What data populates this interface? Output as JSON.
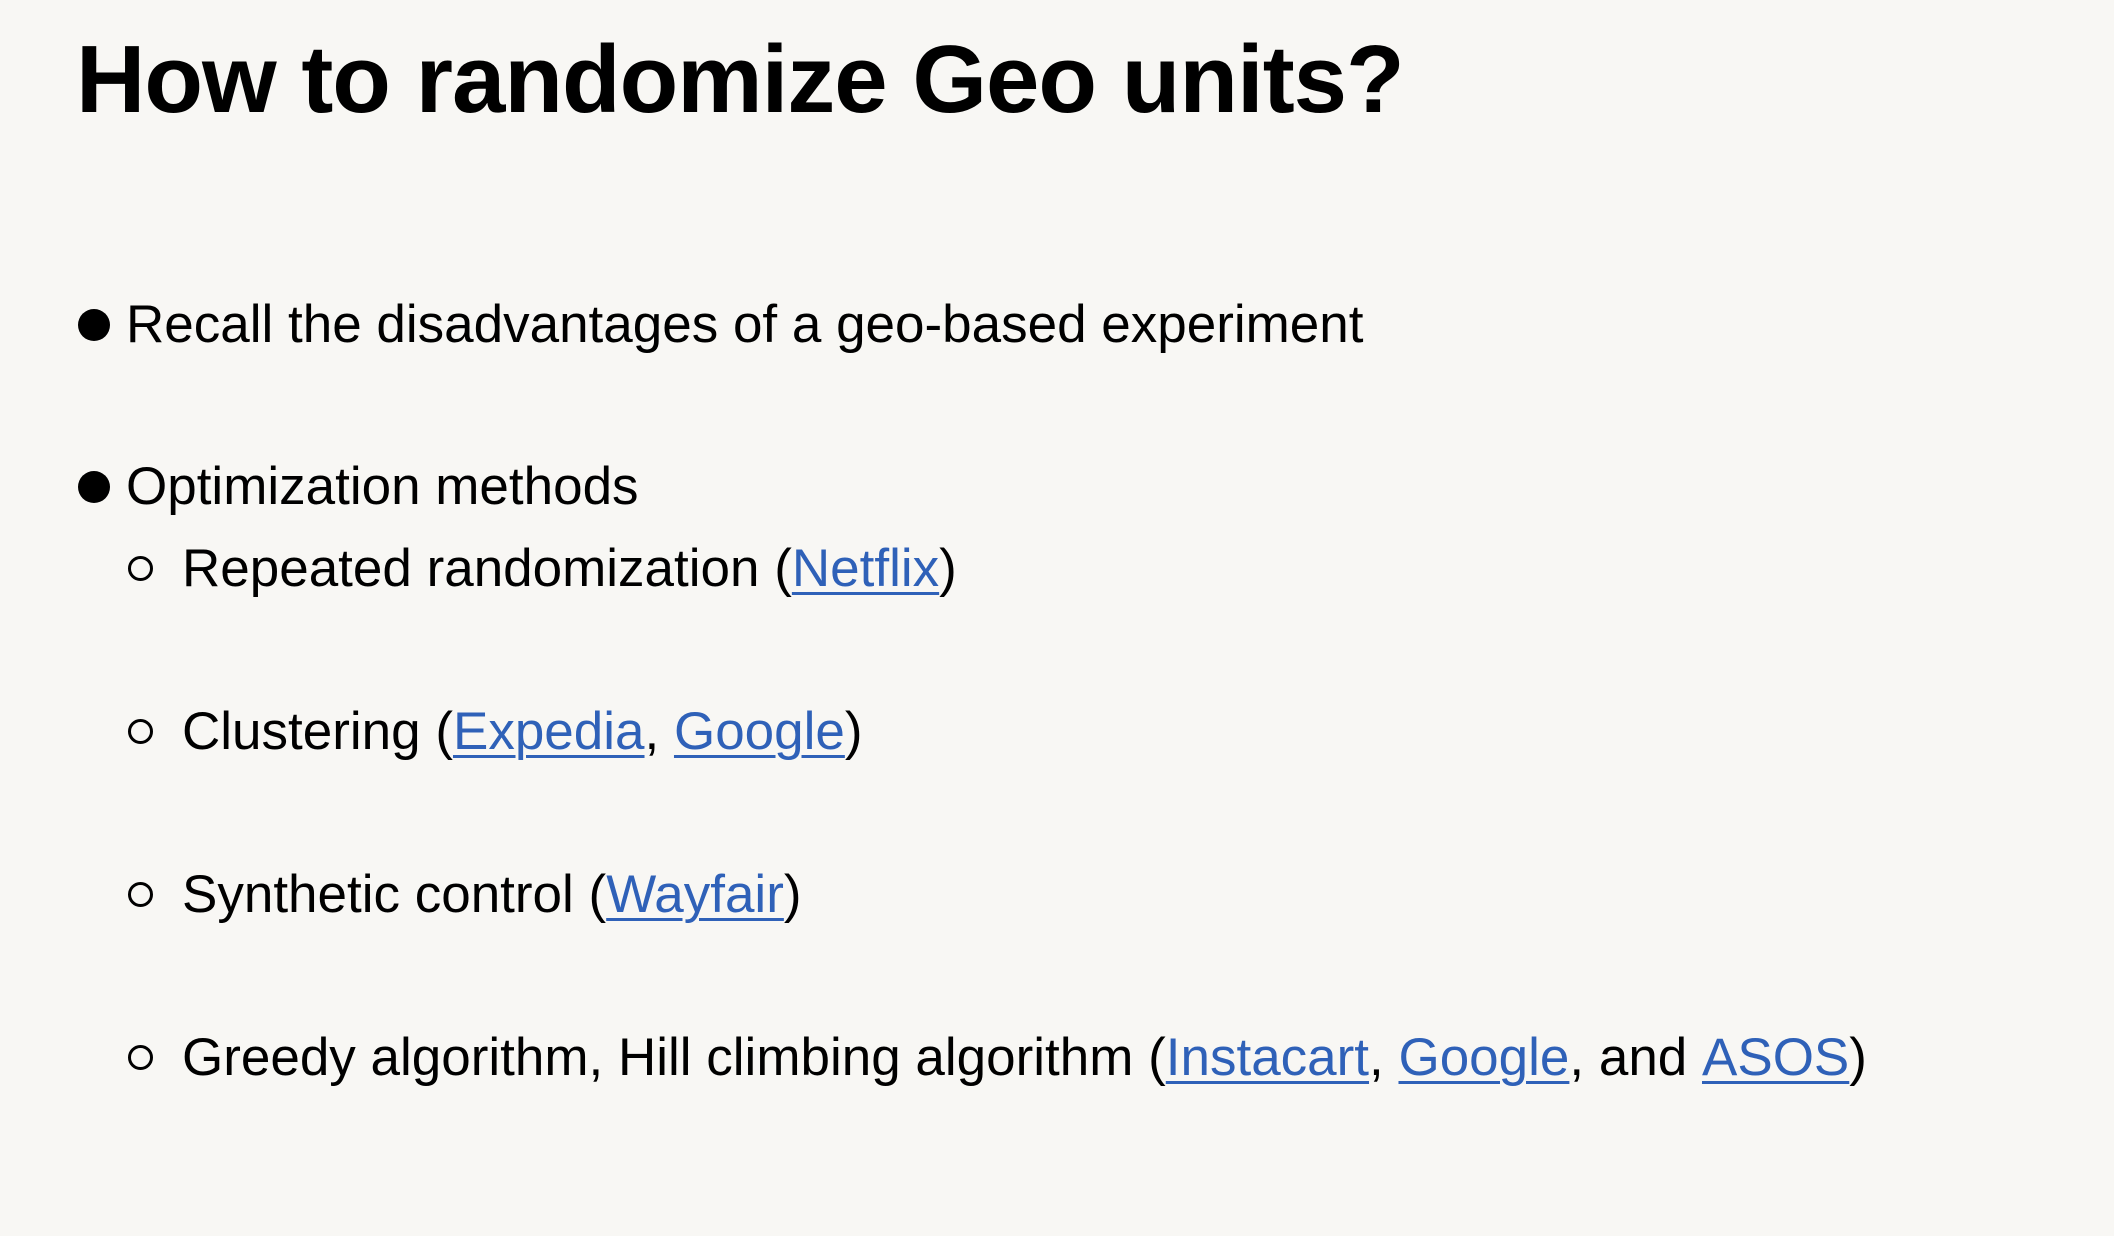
{
  "title": "How to randomize Geo units?",
  "bullets": [
    {
      "text": "Recall the disadvantages of a geo-based experiment"
    },
    {
      "text": "Optimization methods"
    }
  ],
  "subitems": [
    {
      "label": "Repeated randomization (",
      "links": [
        "Netflix"
      ],
      "close": ")"
    },
    {
      "label": "Clustering (",
      "links": [
        "Expedia",
        "Google"
      ],
      "separators": [
        ", "
      ],
      "close": ")"
    },
    {
      "label": "Synthetic control (",
      "links": [
        "Wayfair"
      ],
      "close": ")"
    },
    {
      "label": "Greedy algorithm, Hill climbing algorithm (",
      "links": [
        "Instacart",
        "Google",
        "ASOS"
      ],
      "separators": [
        ", ",
        ", and "
      ],
      "close": ")"
    }
  ],
  "colors": {
    "background": "#f8f7f4",
    "text": "#000000",
    "link": "#2f61b8"
  }
}
